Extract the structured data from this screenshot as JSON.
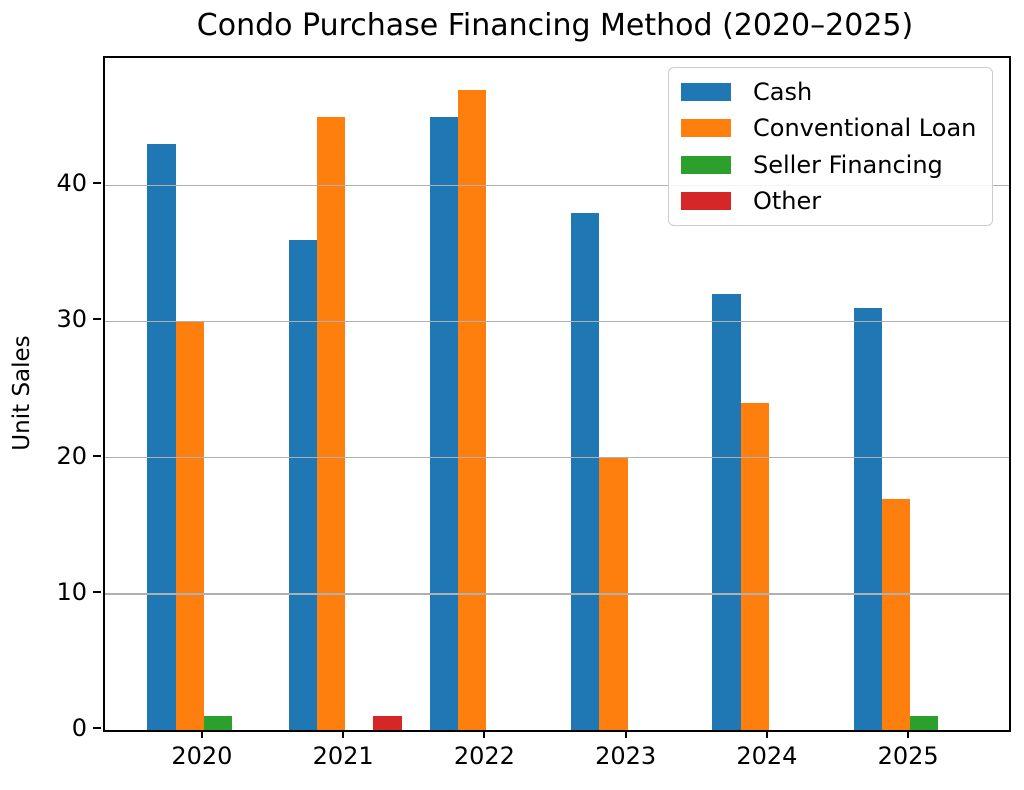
{
  "chart_data": {
    "type": "bar",
    "title": "Condo Purchase Financing Method (2020–2025)",
    "xlabel": "",
    "ylabel": "Unit Sales",
    "categories": [
      "2020",
      "2021",
      "2022",
      "2023",
      "2024",
      "2025"
    ],
    "series": [
      {
        "name": "Cash",
        "color": "#1f77b4",
        "values": [
          43,
          36,
          45,
          38,
          32,
          31
        ]
      },
      {
        "name": "Conventional Loan",
        "color": "#ff7f0e",
        "values": [
          30,
          45,
          47,
          20,
          24,
          17
        ]
      },
      {
        "name": "Seller Financing",
        "color": "#2ca02c",
        "values": [
          1,
          0,
          0,
          0,
          0,
          1
        ]
      },
      {
        "name": "Other",
        "color": "#d62728",
        "values": [
          0,
          1,
          0,
          0,
          0,
          0
        ]
      }
    ],
    "ylim": [
      0,
      49.35
    ],
    "yticks": [
      0,
      10,
      20,
      30,
      40
    ],
    "grid": true,
    "grid_color": "#b0b0b0",
    "axis_color": "#000000",
    "background": "#ffffff",
    "legend_position": "upper right",
    "bar_width_units": 0.2,
    "group_offsets_units": [
      -0.4,
      -0.2,
      0.0,
      0.2
    ],
    "xlim_units": [
      -0.7,
      5.7
    ]
  }
}
